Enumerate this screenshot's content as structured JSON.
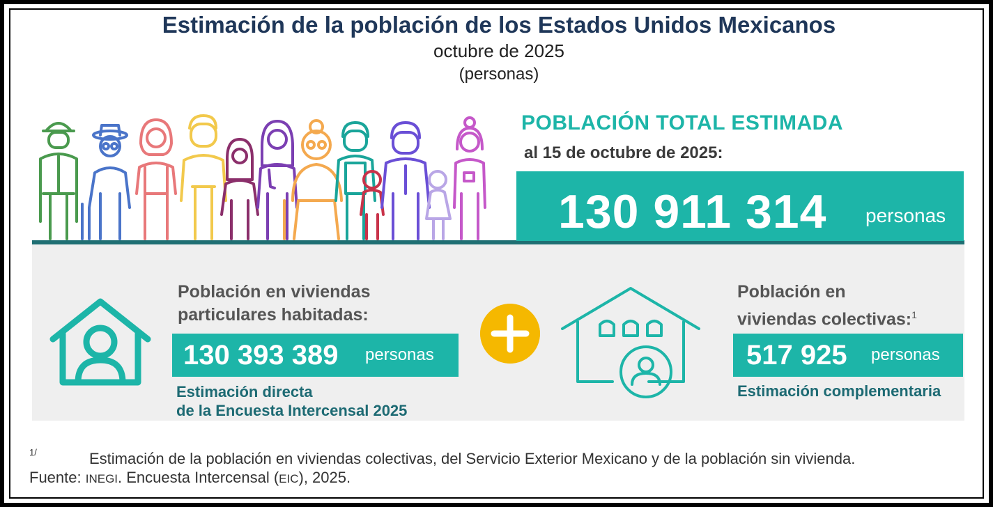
{
  "header": {
    "title": "Estimación de la población de los Estados Unidos Mexicanos",
    "subtitle": "octubre de 2025",
    "unit": "(personas)"
  },
  "total": {
    "heading": "POBLACIÓN TOTAL ESTIMADA",
    "date": "al 15 de octubre de 2025:",
    "value": "130 911 314",
    "unit": "personas"
  },
  "particulares": {
    "label_line1": "Población en viviendas",
    "label_line2": "particulares habitadas:",
    "value": "130 393 389",
    "unit": "personas",
    "note_line1": "Estimación directa",
    "note_line2": "de la Encuesta Intercensal 2025"
  },
  "colectivas": {
    "label_line1": "Población en",
    "label_line2": "viviendas colectivas:",
    "footnote_ref": "1",
    "value": "517 925",
    "unit": "personas",
    "note": "Estimación complementaria"
  },
  "footnote": {
    "mark": "1/",
    "text": "Estimación de la población en viviendas colectivas, del Servicio Exterior Mexicano y de la población sin vivienda."
  },
  "source": {
    "label": "Fuente:",
    "org": "INEGI",
    "text_a": ". Encuesta Intercensal (",
    "abbr": "EIC",
    "text_b": "), 2025."
  },
  "icons": {
    "people": "people-group-icon",
    "house_left": "home-person-icon",
    "plus": "plus-icon",
    "house_right": "collective-housing-icon"
  },
  "colors": {
    "teal": "#1db5a8",
    "dark_teal": "#1f6f73",
    "title_navy": "#1f3759",
    "plus_yellow": "#f5b800",
    "panel_gray": "#efefef"
  }
}
